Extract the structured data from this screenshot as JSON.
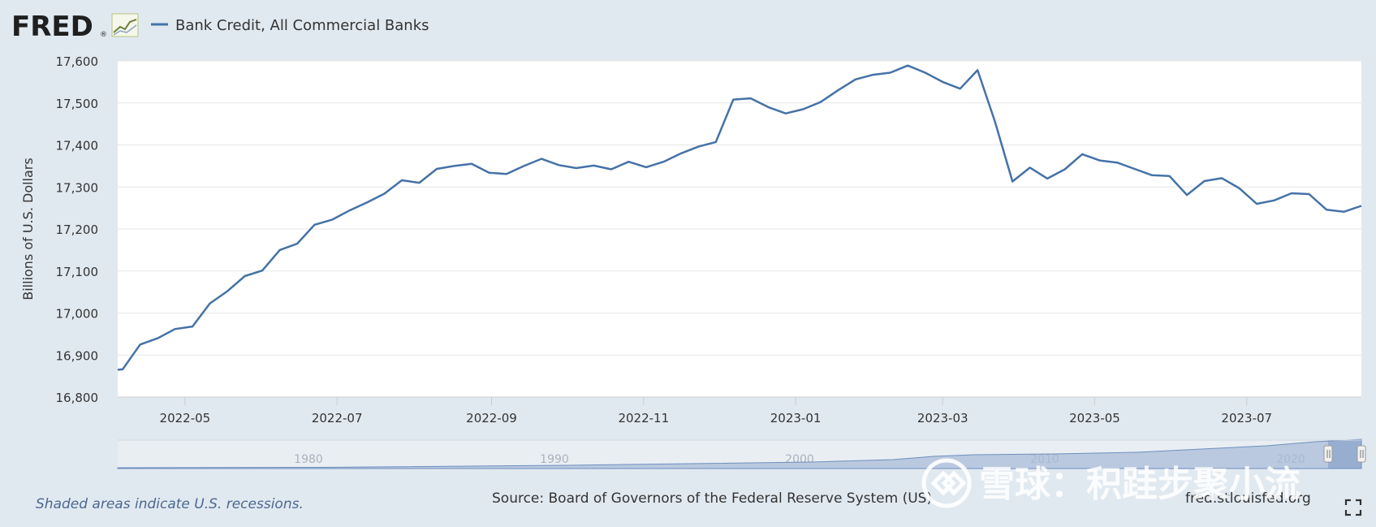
{
  "header": {
    "logo_text": "FRED",
    "logo_registered": "®"
  },
  "legend": {
    "series_label": "Bank Credit, All Commercial Banks"
  },
  "footer": {
    "recession_note": "Shaded areas indicate U.S. recessions.",
    "source": "Source: Board of Governors of the Federal Reserve System (US)",
    "site": "fred.stlouisfed.org"
  },
  "watermark": {
    "text": "雪球：积跬步聚小流"
  },
  "navigator": {
    "year_labels": [
      "1980",
      "1990",
      "2000",
      "2010",
      "2020"
    ]
  },
  "colors": {
    "series": "#4572a7",
    "background": "#e1e9f0",
    "plot_background": "#ffffff",
    "navigator_fill": "#9fb3d3"
  },
  "icons": {
    "logo_chart": "mini-line-chart-icon",
    "fullscreen": "fullscreen-icon"
  },
  "chart_data": {
    "type": "line",
    "title": "",
    "xlabel": "",
    "ylabel": "Billions of U.S. Dollars",
    "ylim": [
      16800,
      17600
    ],
    "yticks": [
      16800,
      16900,
      17000,
      17100,
      17200,
      17300,
      17400,
      17500,
      17600
    ],
    "ytick_labels": [
      "16,800",
      "16,900",
      "17,000",
      "17,100",
      "17,200",
      "17,300",
      "17,400",
      "17,500",
      "17,600"
    ],
    "xlim": [
      "2022-04-04",
      "2023-08-16"
    ],
    "xticks": [
      "2022-05-01",
      "2022-07-01",
      "2022-09-01",
      "2022-11-01",
      "2023-01-01",
      "2023-03-01",
      "2023-05-01",
      "2023-07-01"
    ],
    "xtick_labels": [
      "2022-05",
      "2022-07",
      "2022-09",
      "2022-11",
      "2023-01",
      "2023-03",
      "2023-05",
      "2023-07"
    ],
    "grid": true,
    "series": [
      {
        "name": "Bank Credit, All Commercial Banks",
        "x": [
          "2022-04-04",
          "2022-04-06",
          "2022-04-13",
          "2022-04-20",
          "2022-04-27",
          "2022-05-04",
          "2022-05-11",
          "2022-05-18",
          "2022-05-25",
          "2022-06-01",
          "2022-06-08",
          "2022-06-15",
          "2022-06-22",
          "2022-06-29",
          "2022-07-06",
          "2022-07-13",
          "2022-07-20",
          "2022-07-27",
          "2022-08-03",
          "2022-08-10",
          "2022-08-17",
          "2022-08-24",
          "2022-08-31",
          "2022-09-07",
          "2022-09-14",
          "2022-09-21",
          "2022-09-28",
          "2022-10-05",
          "2022-10-12",
          "2022-10-19",
          "2022-10-26",
          "2022-11-02",
          "2022-11-09",
          "2022-11-16",
          "2022-11-23",
          "2022-11-30",
          "2022-12-07",
          "2022-12-14",
          "2022-12-21",
          "2022-12-28",
          "2023-01-04",
          "2023-01-11",
          "2023-01-18",
          "2023-01-25",
          "2023-02-01",
          "2023-02-08",
          "2023-02-15",
          "2023-02-22",
          "2023-03-01",
          "2023-03-08",
          "2023-03-15",
          "2023-03-22",
          "2023-03-29",
          "2023-04-05",
          "2023-04-12",
          "2023-04-19",
          "2023-04-26",
          "2023-05-03",
          "2023-05-10",
          "2023-05-17",
          "2023-05-24",
          "2023-05-31",
          "2023-06-07",
          "2023-06-14",
          "2023-06-21",
          "2023-06-28",
          "2023-07-05",
          "2023-07-12",
          "2023-07-19",
          "2023-07-26",
          "2023-08-02",
          "2023-08-09",
          "2023-08-16"
        ],
        "values": [
          16865,
          16866,
          16925,
          16940,
          16962,
          16968,
          17023,
          17052,
          17088,
          17101,
          17150,
          17165,
          17210,
          17222,
          17244,
          17263,
          17284,
          17316,
          17310,
          17343,
          17350,
          17355,
          17334,
          17331,
          17350,
          17367,
          17352,
          17345,
          17351,
          17342,
          17360,
          17347,
          17360,
          17380,
          17396,
          17407,
          17508,
          17511,
          17490,
          17475,
          17485,
          17502,
          17530,
          17556,
          17567,
          17572,
          17589,
          17572,
          17550,
          17534,
          17578,
          17455,
          17313,
          17346,
          17320,
          17342,
          17378,
          17363,
          17358,
          17343,
          17328,
          17326,
          17281,
          17314,
          17321,
          17297,
          17260,
          17268,
          17285,
          17283,
          17246,
          17241,
          17255
        ]
      }
    ]
  }
}
